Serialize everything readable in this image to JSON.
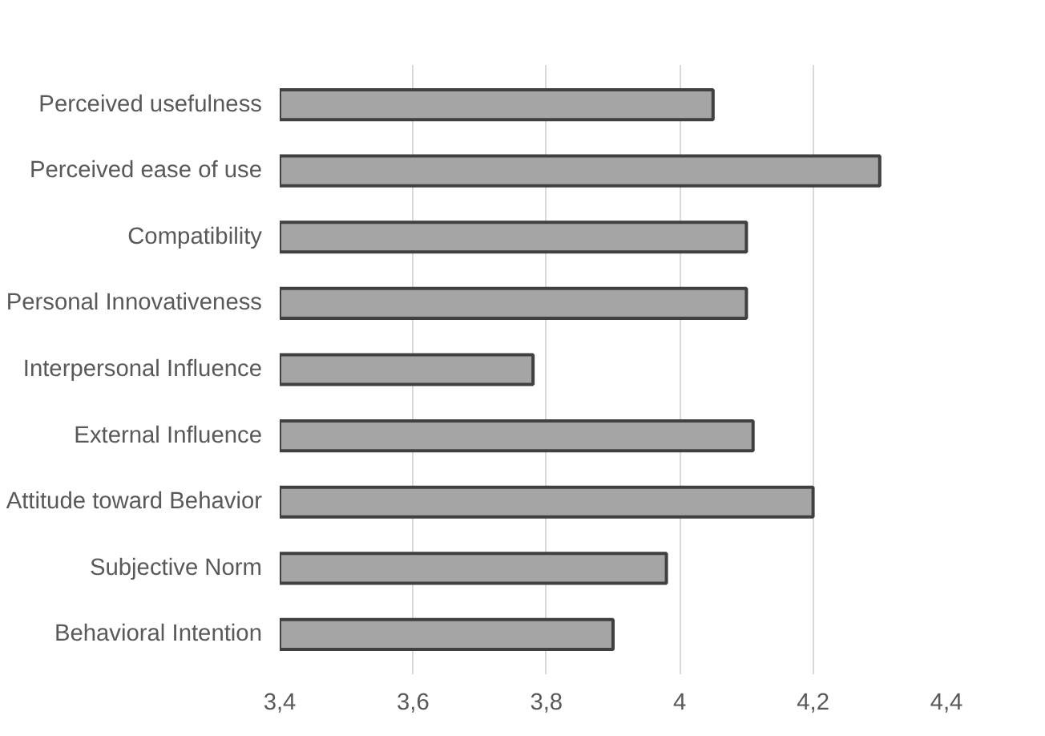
{
  "chart_data": {
    "type": "bar",
    "orientation": "horizontal",
    "categories": [
      "Perceived usefulness",
      "Perceived ease of use",
      "Compatibility",
      "Personal Innovativeness",
      "Interpersonal Influence",
      "External Influence",
      "Attitude toward Behavior",
      "Subjective Norm",
      "Behavioral Intention"
    ],
    "values": [
      4.05,
      4.3,
      4.1,
      4.1,
      3.78,
      4.11,
      4.2,
      3.98,
      3.9
    ],
    "color": "#a5a5a5",
    "xlim": [
      3.4,
      4.4
    ],
    "xticks": [
      {
        "value": 3.4,
        "label": "3,4"
      },
      {
        "value": 3.6,
        "label": "3,6"
      },
      {
        "value": 3.8,
        "label": "3,8"
      },
      {
        "value": 4,
        "label": "4"
      },
      {
        "value": 4.2,
        "label": "4,2"
      },
      {
        "value": 4.4,
        "label": "4,4"
      }
    ],
    "grid": "x"
  }
}
